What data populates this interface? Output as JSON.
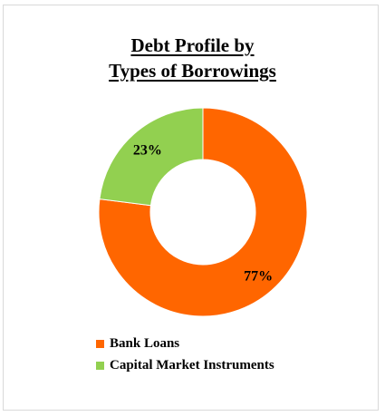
{
  "chart_data": {
    "type": "pie",
    "style": "donut",
    "title_lines": [
      "Debt Profile by",
      "Types of Borrowings"
    ],
    "categories": [
      "Bank Loans",
      "Capital Market Instruments"
    ],
    "values": [
      77,
      23
    ],
    "labels": [
      "77%",
      "23%"
    ],
    "colors": [
      "#ff6600",
      "#92d050"
    ],
    "legend_position": "bottom-left"
  }
}
